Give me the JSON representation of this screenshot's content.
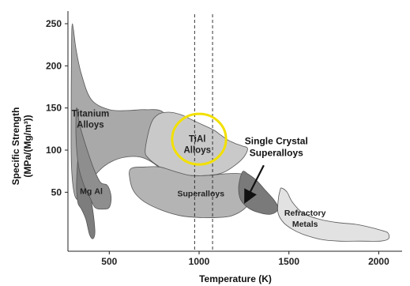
{
  "chart_data": {
    "type": "area",
    "xlabel": "Temperature (K)",
    "ylabel_line1": "Specific Strength",
    "ylabel_line2": "(MPa/(Mg/m³))",
    "xlim": [
      270,
      2130
    ],
    "ylim": [
      -20,
      265
    ],
    "x_ticks": [
      500,
      1000,
      1500,
      2000
    ],
    "y_ticks": [
      50,
      100,
      150,
      200,
      250
    ],
    "grid": false,
    "highlight": {
      "label": "TiAl Alloys",
      "center": [
        1000,
        113
      ],
      "semi_axes": [
        150,
        30
      ],
      "color": "#f2e000"
    },
    "reference_lines": [
      975,
      1075
    ],
    "regions": [
      {
        "name": "Titanium Alloys",
        "label_lines": [
          "Titanium",
          "Alloys"
        ],
        "label_at": [
          395,
          140
        ],
        "fill": "#a9a9a9",
        "outline": [
          [
            295,
            250
          ],
          [
            315,
            220
          ],
          [
            345,
            190
          ],
          [
            400,
            160
          ],
          [
            500,
            148
          ],
          [
            600,
            147
          ],
          [
            700,
            148
          ],
          [
            800,
            145
          ],
          [
            860,
            120
          ],
          [
            910,
            90
          ],
          [
            945,
            60
          ],
          [
            950,
            48
          ],
          [
            900,
            50
          ],
          [
            800,
            75
          ],
          [
            700,
            90
          ],
          [
            600,
            92
          ],
          [
            500,
            85
          ],
          [
            420,
            70
          ],
          [
            350,
            45
          ],
          [
            310,
            45
          ],
          [
            290,
            80
          ],
          [
            288,
            150
          ],
          [
            290,
            220
          ]
        ]
      },
      {
        "name": "TiAl Alloys",
        "label_lines": [
          "TiAl",
          "Alloys"
        ],
        "label_at": [
          990,
          110
        ],
        "fill": "#c9c9c9",
        "outline": [
          [
            700,
            100
          ],
          [
            730,
            130
          ],
          [
            770,
            142
          ],
          [
            830,
            145
          ],
          [
            900,
            142
          ],
          [
            960,
            136
          ],
          [
            1020,
            130
          ],
          [
            1080,
            124
          ],
          [
            1120,
            118
          ],
          [
            1160,
            112
          ],
          [
            1200,
            108
          ],
          [
            1240,
            105
          ],
          [
            1270,
            102
          ],
          [
            1250,
            92
          ],
          [
            1200,
            82
          ],
          [
            1130,
            73
          ],
          [
            1050,
            70
          ],
          [
            950,
            70
          ],
          [
            850,
            72
          ],
          [
            780,
            80
          ],
          [
            720,
            90
          ]
        ]
      },
      {
        "name": "Superalloys",
        "label_lines": [
          "Superalloys"
        ],
        "label_at": [
          1010,
          45
        ],
        "fill": "#b4b4b4",
        "outline": [
          [
            620,
            78
          ],
          [
            700,
            80
          ],
          [
            780,
            80
          ],
          [
            860,
            75
          ],
          [
            950,
            70
          ],
          [
            1050,
            70
          ],
          [
            1150,
            72
          ],
          [
            1230,
            72
          ],
          [
            1280,
            68
          ],
          [
            1300,
            55
          ],
          [
            1290,
            42
          ],
          [
            1250,
            30
          ],
          [
            1180,
            22
          ],
          [
            1100,
            20
          ],
          [
            1000,
            20
          ],
          [
            900,
            22
          ],
          [
            800,
            28
          ],
          [
            700,
            38
          ],
          [
            640,
            50
          ],
          [
            615,
            65
          ]
        ]
      },
      {
        "name": "Single Crystal Superalloys",
        "label_lines": [],
        "label_at": [
          1300,
          50
        ],
        "fill": "#7a7a7a",
        "outline": [
          [
            1245,
            75
          ],
          [
            1270,
            72
          ],
          [
            1320,
            64
          ],
          [
            1370,
            52
          ],
          [
            1420,
            40
          ],
          [
            1440,
            30
          ],
          [
            1400,
            24
          ],
          [
            1330,
            26
          ],
          [
            1270,
            32
          ],
          [
            1230,
            42
          ],
          [
            1220,
            55
          ],
          [
            1230,
            68
          ]
        ]
      },
      {
        "name": "Refractory Metals",
        "label_lines": [
          "Refractory",
          "Metals"
        ],
        "label_at": [
          1590,
          22
        ],
        "fill": "#e2e2e2",
        "outline": [
          [
            1460,
            55
          ],
          [
            1490,
            50
          ],
          [
            1520,
            38
          ],
          [
            1580,
            25
          ],
          [
            1670,
            18
          ],
          [
            1770,
            14
          ],
          [
            1870,
            12
          ],
          [
            1960,
            8
          ],
          [
            2010,
            5
          ],
          [
            2050,
            2
          ],
          [
            2055,
            -5
          ],
          [
            2010,
            -8
          ],
          [
            1900,
            -8
          ],
          [
            1780,
            -8
          ],
          [
            1680,
            -6
          ],
          [
            1580,
            0
          ],
          [
            1520,
            6
          ],
          [
            1470,
            14
          ],
          [
            1440,
            25
          ],
          [
            1440,
            40
          ],
          [
            1450,
            52
          ]
        ]
      },
      {
        "name": "Mg",
        "label_lines": [
          "Mg"
        ],
        "label_at": [
          370,
          48
        ],
        "fill": "#7d7d7d",
        "outline": [
          [
            330,
            95
          ],
          [
            360,
            80
          ],
          [
            400,
            40
          ],
          [
            420,
            5
          ],
          [
            410,
            -5
          ],
          [
            390,
            0
          ],
          [
            370,
            18
          ],
          [
            345,
            30
          ],
          [
            325,
            38
          ],
          [
            318,
            60
          ]
        ]
      },
      {
        "name": "Al",
        "label_lines": [
          "Al"
        ],
        "label_at": [
          440,
          48
        ],
        "fill": "#8e8e8e",
        "outline": [
          [
            318,
            150
          ],
          [
            335,
            130
          ],
          [
            370,
            105
          ],
          [
            410,
            80
          ],
          [
            450,
            62
          ],
          [
            490,
            58
          ],
          [
            510,
            45
          ],
          [
            500,
            32
          ],
          [
            460,
            30
          ],
          [
            420,
            32
          ],
          [
            390,
            45
          ],
          [
            360,
            58
          ],
          [
            330,
            80
          ],
          [
            315,
            115
          ]
        ]
      }
    ],
    "callouts": [
      {
        "label_lines": [
          "Single Crystal",
          "Superalloys"
        ],
        "text_at": [
          1430,
          107
        ],
        "arrow_from": [
          1360,
          82
        ],
        "arrow_to": [
          1260,
          40
        ]
      }
    ]
  }
}
